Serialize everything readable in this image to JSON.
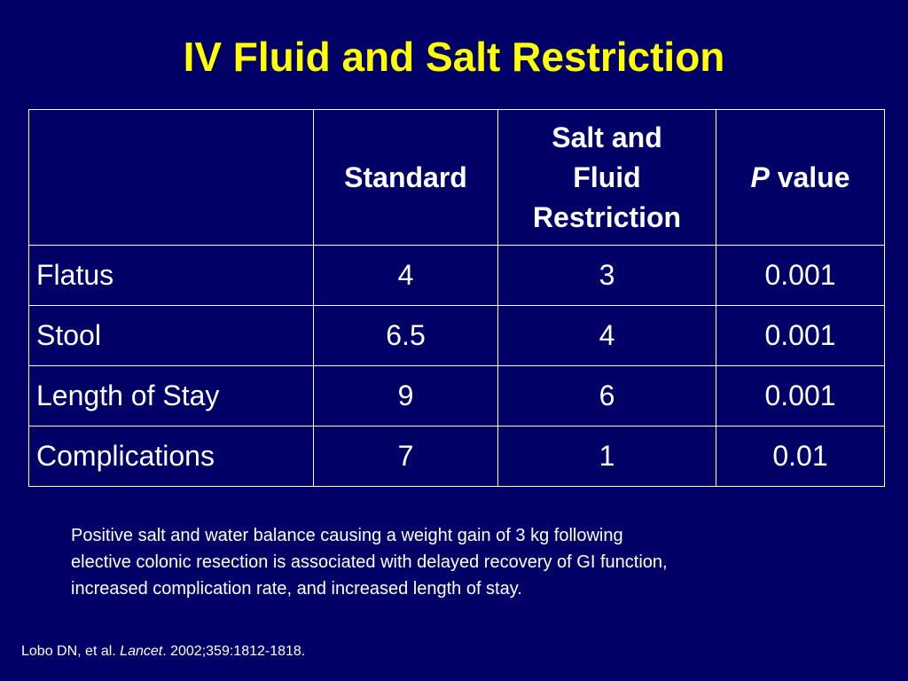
{
  "slide": {
    "title": "IV Fluid and Salt Restriction"
  },
  "table": {
    "headers": {
      "blank": "",
      "standard": "Standard",
      "restriction_line1": "Salt and",
      "restriction_line2": "Fluid",
      "restriction_line3": "Restriction",
      "pvalue_p": "P",
      "pvalue_rest": " value"
    },
    "rows": [
      {
        "label": "Flatus",
        "standard": "4",
        "restriction": "3",
        "p_value": "0.001"
      },
      {
        "label": "Stool",
        "standard": "6.5",
        "restriction": "4",
        "p_value": "0.001"
      },
      {
        "label": "Length of Stay",
        "standard": "9",
        "restriction": "6",
        "p_value": "0.001"
      },
      {
        "label": "Complications",
        "standard": "7",
        "restriction": "1",
        "p_value": "0.01"
      }
    ]
  },
  "footnote": {
    "line1": "Positive salt and water balance causing a weight gain of 3 kg following",
    "line2": "elective colonic resection is associated with delayed recovery of GI function,",
    "line3": "increased complication rate, and increased length of stay."
  },
  "citation": {
    "authors": "Lobo DN, et al. ",
    "journal": "Lancet",
    "details": ". 2002;359:1812-1818."
  },
  "colors": {
    "background": "#000066",
    "title": "#ffff00",
    "text": "#ffffff"
  }
}
